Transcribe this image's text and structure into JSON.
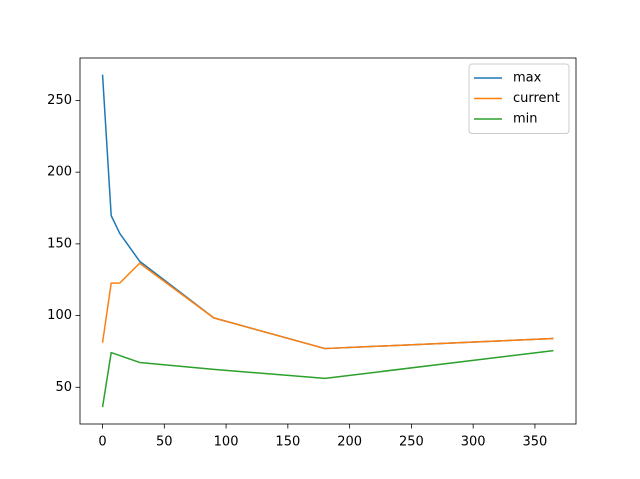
{
  "chart_data": {
    "type": "line",
    "x": [
      0,
      7,
      14,
      30,
      90,
      180,
      365
    ],
    "series": [
      {
        "name": "max",
        "color": "#1f77b4",
        "values": [
          268,
          169.7,
          157.2,
          137.9,
          98.4,
          77,
          84
        ]
      },
      {
        "name": "current",
        "color": "#ff7f0e",
        "values": [
          81.1,
          122.6,
          122.7,
          136.5,
          98.4,
          77,
          84
        ]
      },
      {
        "name": "min",
        "color": "#2ca02c",
        "values": [
          36.2,
          74.2,
          72.1,
          67.3,
          62.5,
          56.2,
          75.6
        ]
      }
    ],
    "xlim": [
      -18.25,
      383.25
    ],
    "xticks": [
      0,
      50,
      100,
      150,
      200,
      250,
      300,
      350
    ],
    "ylim": [
      24.4,
      279.6
    ],
    "yticks": [
      50,
      100,
      150,
      200,
      250
    ],
    "legend": "upper right"
  }
}
